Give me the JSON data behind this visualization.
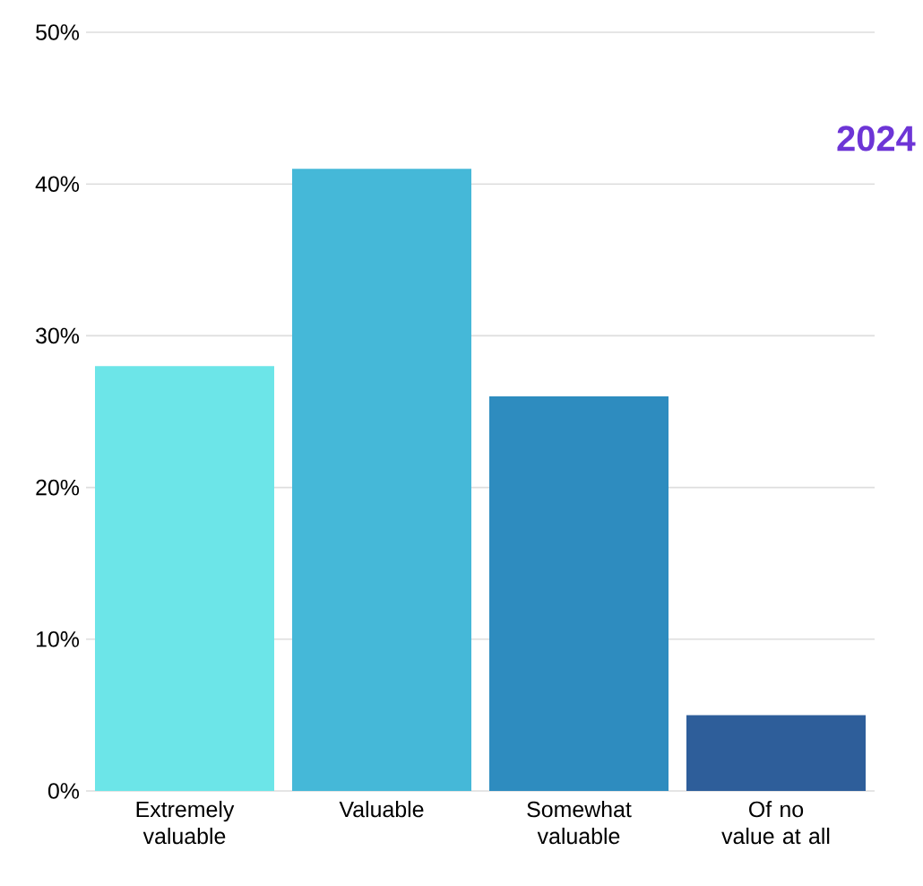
{
  "chart_data": {
    "type": "bar",
    "categories": [
      "Extremely valuable",
      "Valuable",
      "Somewhat valuable",
      "Of no value at all"
    ],
    "values": [
      28,
      41,
      26,
      5
    ],
    "colors": [
      "#6ce5e8",
      "#45b8d8",
      "#2e8cbf",
      "#2e5e9a"
    ],
    "ylim": [
      0,
      50
    ],
    "yticks": [
      {
        "value": 0,
        "label": "0%"
      },
      {
        "value": 10,
        "label": "10%"
      },
      {
        "value": 20,
        "label": "20%"
      },
      {
        "value": 30,
        "label": "30%"
      },
      {
        "value": 40,
        "label": "40%"
      },
      {
        "value": 50,
        "label": "50%"
      }
    ],
    "grid": "y",
    "annotations": [
      "2024"
    ]
  }
}
